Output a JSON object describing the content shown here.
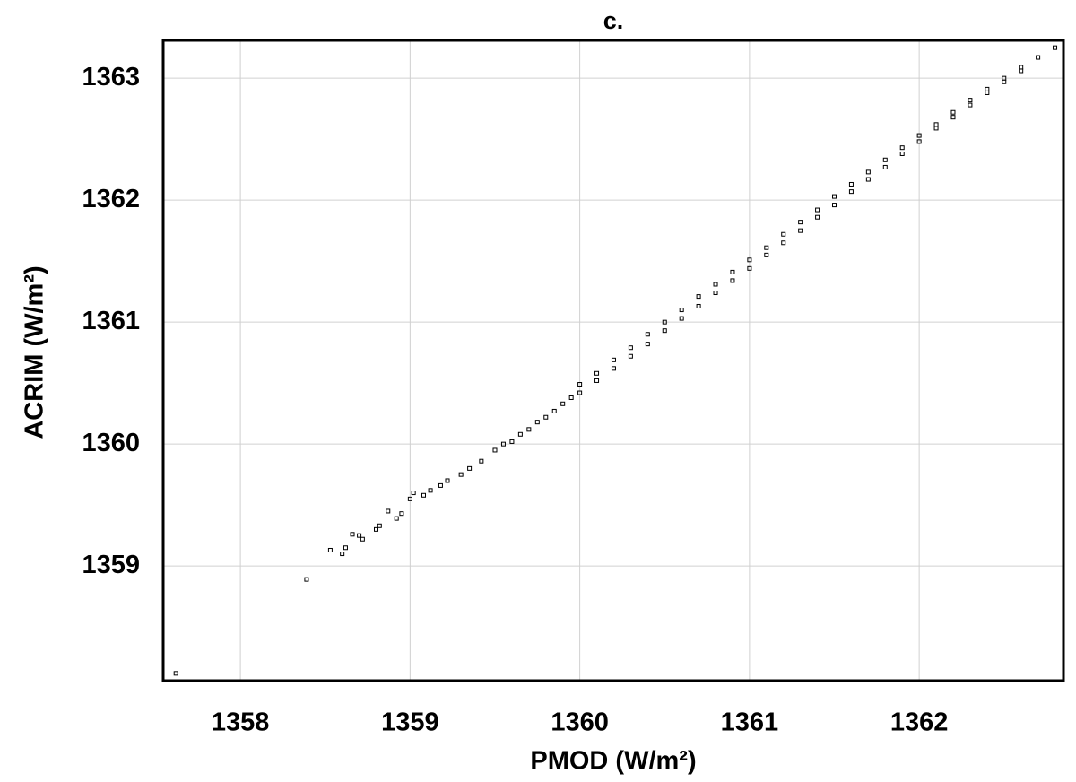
{
  "chart_data": {
    "type": "scatter",
    "title": "c.",
    "xlabel": "PMOD (W/m²)",
    "ylabel": "ACRIM (W/m²)",
    "color": "#000000",
    "marker": "square",
    "grid": true,
    "xlim": [
      1357.545,
      1362.85
    ],
    "ylim": [
      1358.06,
      1363.31
    ],
    "xticks": [
      1358,
      1359,
      1360,
      1361,
      1362
    ],
    "yticks": [
      1359,
      1360,
      1361,
      1362,
      1363
    ],
    "x": [
      1357.62,
      1358.39,
      1358.53,
      1358.6,
      1358.62,
      1358.66,
      1358.7,
      1358.72,
      1358.8,
      1358.82,
      1358.87,
      1358.92,
      1358.95,
      1359.0,
      1359.02,
      1359.08,
      1359.12,
      1359.18,
      1359.22,
      1359.3,
      1359.35,
      1359.42,
      1359.5,
      1359.55,
      1359.6,
      1359.65,
      1359.7,
      1359.75,
      1359.8,
      1359.85,
      1359.9,
      1359.95,
      1360.0,
      1360.0,
      1360.1,
      1360.1,
      1360.2,
      1360.2,
      1360.3,
      1360.3,
      1360.4,
      1360.4,
      1360.5,
      1360.5,
      1360.6,
      1360.6,
      1360.7,
      1360.7,
      1360.8,
      1360.8,
      1360.9,
      1360.9,
      1361.0,
      1361.0,
      1361.1,
      1361.1,
      1361.2,
      1361.2,
      1361.3,
      1361.3,
      1361.4,
      1361.4,
      1361.5,
      1361.5,
      1361.6,
      1361.6,
      1361.7,
      1361.7,
      1361.8,
      1361.8,
      1361.9,
      1361.9,
      1362.0,
      1362.0,
      1362.1,
      1362.1,
      1362.2,
      1362.2,
      1362.3,
      1362.3,
      1362.4,
      1362.4,
      1362.5,
      1362.5,
      1362.6,
      1362.6,
      1362.7,
      1362.8
    ],
    "values": [
      1358.12,
      1358.89,
      1359.13,
      1359.1,
      1359.15,
      1359.26,
      1359.25,
      1359.22,
      1359.3,
      1359.33,
      1359.45,
      1359.39,
      1359.43,
      1359.55,
      1359.6,
      1359.58,
      1359.62,
      1359.66,
      1359.7,
      1359.75,
      1359.8,
      1359.86,
      1359.95,
      1360.0,
      1360.02,
      1360.08,
      1360.12,
      1360.18,
      1360.22,
      1360.27,
      1360.33,
      1360.38,
      1360.42,
      1360.49,
      1360.52,
      1360.58,
      1360.62,
      1360.69,
      1360.72,
      1360.79,
      1360.82,
      1360.9,
      1360.93,
      1361.0,
      1361.03,
      1361.1,
      1361.13,
      1361.21,
      1361.24,
      1361.31,
      1361.34,
      1361.41,
      1361.44,
      1361.51,
      1361.55,
      1361.61,
      1361.65,
      1361.72,
      1361.75,
      1361.82,
      1361.86,
      1361.92,
      1361.96,
      1362.03,
      1362.07,
      1362.13,
      1362.17,
      1362.23,
      1362.27,
      1362.33,
      1362.38,
      1362.43,
      1362.48,
      1362.53,
      1362.59,
      1362.62,
      1362.68,
      1362.72,
      1362.78,
      1362.82,
      1362.88,
      1362.91,
      1362.97,
      1363.0,
      1363.06,
      1363.09,
      1363.17,
      1363.25
    ]
  }
}
